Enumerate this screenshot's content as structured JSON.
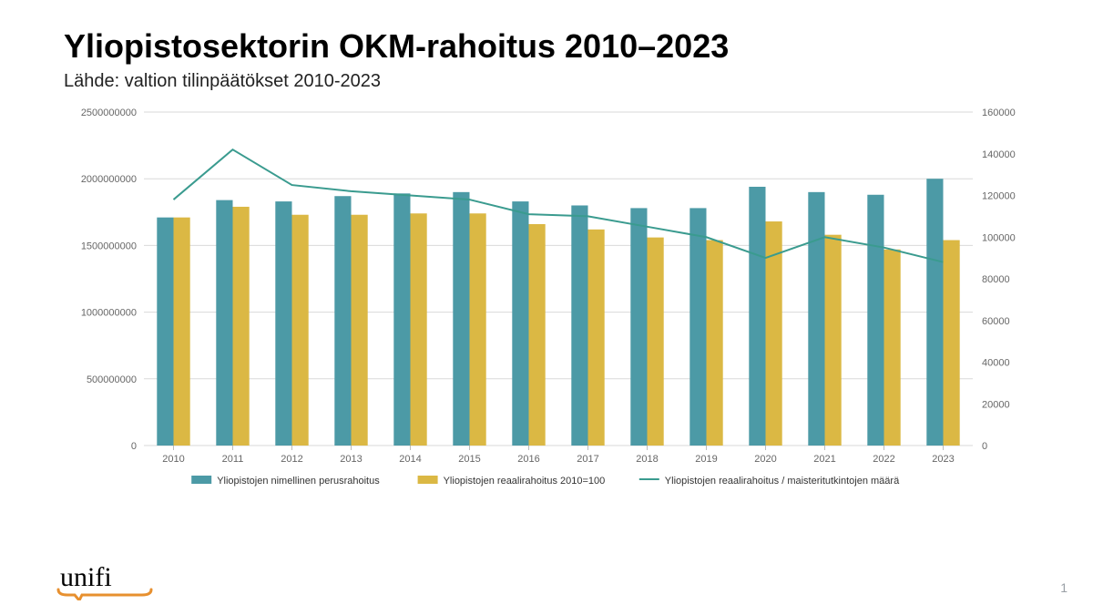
{
  "title": "Yliopistosektorin OKM-rahoitus 2010–2023",
  "subtitle": "Lähde: valtion tilinpäätökset 2010-2023",
  "page_number": "1",
  "logo_text": "unifi",
  "chart": {
    "type": "bar+line",
    "categories": [
      "2010",
      "2011",
      "2012",
      "2013",
      "2014",
      "2015",
      "2016",
      "2017",
      "2018",
      "2019",
      "2020",
      "2021",
      "2022",
      "2023"
    ],
    "series_bar1": {
      "label": "Yliopistojen nimellinen perusrahoitus",
      "color": "#4c9aa6",
      "values": [
        1710000000,
        1840000000,
        1830000000,
        1870000000,
        1890000000,
        1900000000,
        1830000000,
        1800000000,
        1780000000,
        1780000000,
        1940000000,
        1900000000,
        1880000000,
        2000000000
      ]
    },
    "series_bar2": {
      "label": "Yliopistojen reaalirahoitus 2010=100",
      "color": "#dbb844",
      "values": [
        1710000000,
        1790000000,
        1730000000,
        1730000000,
        1740000000,
        1740000000,
        1660000000,
        1620000000,
        1560000000,
        1540000000,
        1680000000,
        1580000000,
        1470000000,
        1540000000
      ]
    },
    "series_line": {
      "label": "Yliopistojen reaalirahoitus / maisteritutkintojen määrä",
      "color": "#3a9b8f",
      "axis": "right",
      "values": [
        118000,
        142000,
        125000,
        122000,
        120000,
        118000,
        111000,
        110000,
        105000,
        100000,
        90000,
        100000,
        95000,
        88000
      ]
    },
    "y_left": {
      "min": 0,
      "max": 2500000000,
      "ticks": [
        0,
        500000000,
        1000000000,
        1500000000,
        2000000000,
        2500000000
      ]
    },
    "y_right": {
      "min": 0,
      "max": 160000,
      "ticks": [
        0,
        20000,
        40000,
        60000,
        80000,
        100000,
        120000,
        140000,
        160000
      ]
    },
    "style": {
      "background": "#ffffff",
      "grid_color": "#d9d9d9",
      "axis_color": "#bdbdbd",
      "tick_font_size": 11,
      "tick_color": "#666666",
      "legend_font_size": 11,
      "bar_group_width": 0.56,
      "bar_inner_gap": 0.0,
      "line_width": 2
    }
  }
}
